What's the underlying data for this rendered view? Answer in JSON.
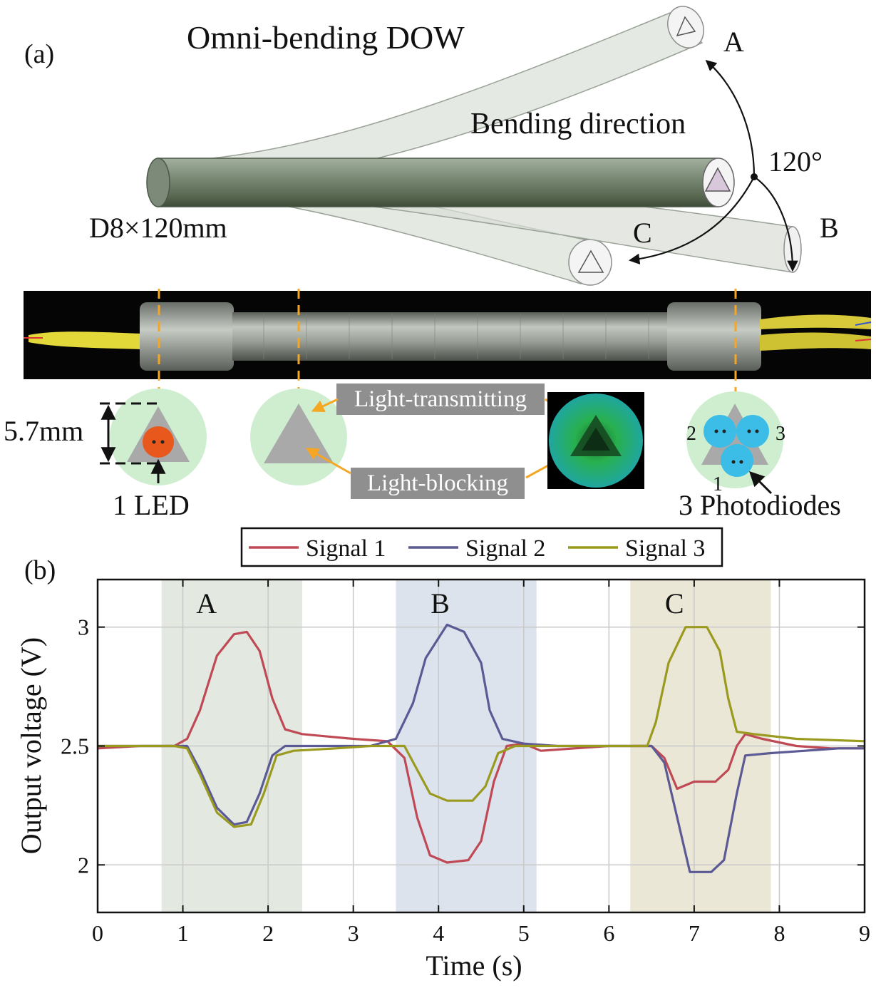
{
  "panel_a": {
    "label": "(a)",
    "title": "Omni-bending DOW",
    "bending_direction_label": "Bending direction",
    "angle_label": "120°",
    "dim_label": "D8×120mm",
    "dir_a": "A",
    "dir_b": "B",
    "dir_c": "C",
    "width_label": "5.7mm",
    "led_label": "1 LED",
    "transmitting_label": "Light-transmitting",
    "blocking_label": "Light-blocking",
    "photodiodes_label": "3 Photodiodes",
    "pd_1": "1",
    "pd_2": "2",
    "pd_3": "3",
    "colors": {
      "led": "#e8571c",
      "photodiode": "#3bbde8",
      "disk": "#cfeed0",
      "triangle": "#a9a9a9",
      "label_box": "#8f8f8f",
      "guide": "#f5a623"
    }
  },
  "panel_b": {
    "label": "(b)"
  },
  "chart_data": {
    "type": "line",
    "xlabel": "Time (s)",
    "ylabel": "Output voltage (V)",
    "xlim": [
      0,
      9
    ],
    "ylim": [
      1.8,
      3.2
    ],
    "xticks": [
      "0",
      "1",
      "2",
      "3",
      "4",
      "5",
      "6",
      "7",
      "8",
      "9"
    ],
    "yticks": [
      "2",
      "2.5",
      "3"
    ],
    "grid": true,
    "legend_position": "top-center",
    "regions": [
      {
        "name": "A",
        "x0": 0.75,
        "x1": 2.4,
        "color": "#e3e9e1"
      },
      {
        "name": "B",
        "x0": 3.5,
        "x1": 5.15,
        "color": "#dde3ec"
      },
      {
        "name": "C",
        "x0": 6.25,
        "x1": 7.9,
        "color": "#ebe7d6"
      }
    ],
    "series": [
      {
        "name": "Signal 1",
        "color": "#bf4a55",
        "points": [
          [
            0,
            2.49
          ],
          [
            0.5,
            2.5
          ],
          [
            0.9,
            2.5
          ],
          [
            1.05,
            2.53
          ],
          [
            1.2,
            2.65
          ],
          [
            1.4,
            2.88
          ],
          [
            1.6,
            2.97
          ],
          [
            1.75,
            2.98
          ],
          [
            1.9,
            2.9
          ],
          [
            2.05,
            2.7
          ],
          [
            2.2,
            2.57
          ],
          [
            2.4,
            2.55
          ],
          [
            2.7,
            2.54
          ],
          [
            3.0,
            2.53
          ],
          [
            3.4,
            2.52
          ],
          [
            3.6,
            2.45
          ],
          [
            3.75,
            2.2
          ],
          [
            3.9,
            2.04
          ],
          [
            4.1,
            2.01
          ],
          [
            4.35,
            2.02
          ],
          [
            4.5,
            2.1
          ],
          [
            4.65,
            2.35
          ],
          [
            4.8,
            2.5
          ],
          [
            5.0,
            2.51
          ],
          [
            5.2,
            2.48
          ],
          [
            5.6,
            2.49
          ],
          [
            6.0,
            2.5
          ],
          [
            6.5,
            2.5
          ],
          [
            6.65,
            2.45
          ],
          [
            6.8,
            2.32
          ],
          [
            7.0,
            2.35
          ],
          [
            7.25,
            2.35
          ],
          [
            7.4,
            2.4
          ],
          [
            7.5,
            2.5
          ],
          [
            7.6,
            2.55
          ],
          [
            7.8,
            2.53
          ],
          [
            8.2,
            2.5
          ],
          [
            8.6,
            2.49
          ],
          [
            9.0,
            2.49
          ]
        ]
      },
      {
        "name": "Signal 2",
        "color": "#5b5a94",
        "points": [
          [
            0,
            2.5
          ],
          [
            0.5,
            2.5
          ],
          [
            0.9,
            2.5
          ],
          [
            1.05,
            2.5
          ],
          [
            1.2,
            2.4
          ],
          [
            1.4,
            2.24
          ],
          [
            1.6,
            2.17
          ],
          [
            1.75,
            2.18
          ],
          [
            1.9,
            2.3
          ],
          [
            2.05,
            2.46
          ],
          [
            2.2,
            2.5
          ],
          [
            2.6,
            2.5
          ],
          [
            3.2,
            2.5
          ],
          [
            3.5,
            2.53
          ],
          [
            3.7,
            2.68
          ],
          [
            3.85,
            2.87
          ],
          [
            4.1,
            3.01
          ],
          [
            4.3,
            2.98
          ],
          [
            4.5,
            2.85
          ],
          [
            4.6,
            2.65
          ],
          [
            4.75,
            2.53
          ],
          [
            5.0,
            2.51
          ],
          [
            5.4,
            2.5
          ],
          [
            6.0,
            2.5
          ],
          [
            6.5,
            2.5
          ],
          [
            6.65,
            2.43
          ],
          [
            6.8,
            2.2
          ],
          [
            6.95,
            1.97
          ],
          [
            7.2,
            1.97
          ],
          [
            7.35,
            2.02
          ],
          [
            7.5,
            2.3
          ],
          [
            7.6,
            2.46
          ],
          [
            7.9,
            2.47
          ],
          [
            8.3,
            2.48
          ],
          [
            8.7,
            2.49
          ],
          [
            9.0,
            2.49
          ]
        ]
      },
      {
        "name": "Signal 3",
        "color": "#9a9a1f",
        "points": [
          [
            0,
            2.5
          ],
          [
            0.5,
            2.5
          ],
          [
            0.9,
            2.5
          ],
          [
            1.05,
            2.49
          ],
          [
            1.2,
            2.38
          ],
          [
            1.4,
            2.22
          ],
          [
            1.6,
            2.16
          ],
          [
            1.8,
            2.17
          ],
          [
            1.95,
            2.3
          ],
          [
            2.1,
            2.46
          ],
          [
            2.3,
            2.48
          ],
          [
            2.8,
            2.49
          ],
          [
            3.2,
            2.5
          ],
          [
            3.6,
            2.5
          ],
          [
            3.75,
            2.4
          ],
          [
            3.9,
            2.3
          ],
          [
            4.1,
            2.27
          ],
          [
            4.4,
            2.27
          ],
          [
            4.55,
            2.33
          ],
          [
            4.7,
            2.47
          ],
          [
            4.9,
            2.5
          ],
          [
            5.4,
            2.5
          ],
          [
            6.0,
            2.5
          ],
          [
            6.45,
            2.5
          ],
          [
            6.55,
            2.6
          ],
          [
            6.7,
            2.85
          ],
          [
            6.9,
            3.0
          ],
          [
            7.15,
            3.0
          ],
          [
            7.3,
            2.9
          ],
          [
            7.4,
            2.7
          ],
          [
            7.5,
            2.56
          ],
          [
            7.7,
            2.55
          ],
          [
            8.2,
            2.53
          ],
          [
            9.0,
            2.52
          ]
        ]
      }
    ]
  }
}
